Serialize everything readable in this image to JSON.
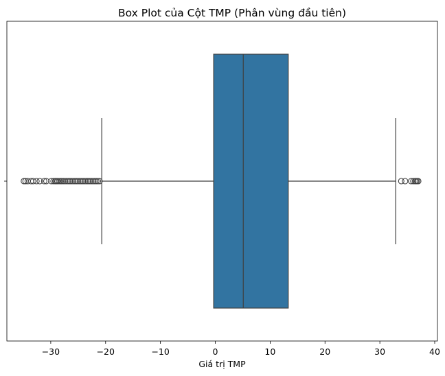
{
  "chart_data": {
    "type": "box",
    "title": "Box Plot của Cột TMP (Phân vùng đầu tiên)",
    "xlabel": "Giá trị TMP",
    "ylabel": "",
    "xlim": [
      -38,
      40.5
    ],
    "xticks": [
      -30,
      -20,
      -10,
      0,
      10,
      20,
      30,
      40
    ],
    "xtick_labels": [
      "−30",
      "−20",
      "−10",
      "0",
      "10",
      "20",
      "30",
      "40"
    ],
    "grid": false,
    "colors": {
      "box_fill": "#3274a1",
      "lines": "#3f3f3f",
      "frame": "#000000"
    },
    "box": {
      "whisker_low": -20.7,
      "q1": -0.3,
      "median": 5.1,
      "q3": 13.3,
      "whisker_high": 32.9
    },
    "outliers": [
      -34.9,
      -34.6,
      -34.2,
      -33.6,
      -33.2,
      -32.6,
      -32.0,
      -31.2,
      -30.8,
      -29.9,
      -29.5,
      -29.2,
      -29.0,
      -28.8,
      -28.5,
      -28.2,
      -28.0,
      -27.7,
      -27.4,
      -27.1,
      -26.8,
      -26.5,
      -26.2,
      -25.9,
      -25.6,
      -25.3,
      -25.0,
      -24.7,
      -24.4,
      -24.1,
      -23.8,
      -23.5,
      -23.2,
      -22.9,
      -22.6,
      -22.3,
      -22.0,
      -21.7,
      -21.4,
      -21.1,
      33.9,
      34.6,
      35.7,
      36.1,
      36.4,
      36.6,
      36.8,
      37.0
    ]
  }
}
